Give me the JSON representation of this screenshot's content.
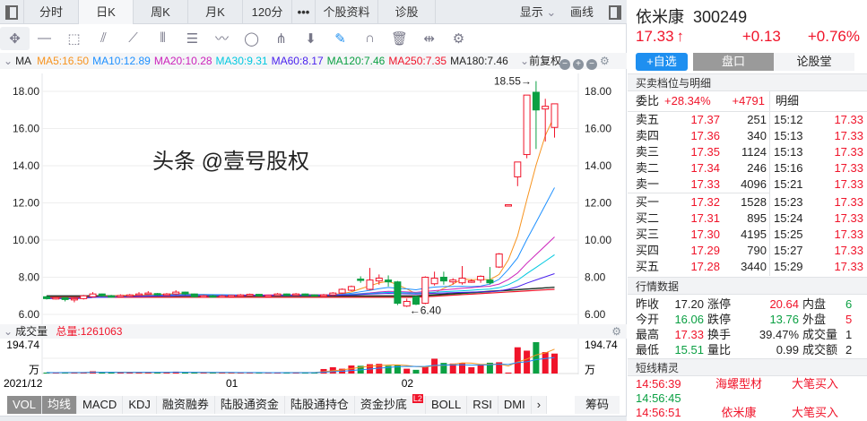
{
  "tabs": [
    "分时",
    "日K",
    "周K",
    "月K",
    "120分",
    "•••",
    "个股资料",
    "诊股"
  ],
  "tabs_right": {
    "display": "显示",
    "draw": "画线"
  },
  "tools": [
    "move-icon",
    "line-icon",
    "rect-icon",
    "fan-icon",
    "segment-icon",
    "parallel-lines-icon",
    "gann-icon",
    "wave-icon",
    "cycle-icon",
    "fork-icon",
    "arrow-down-icon",
    "eraser-icon",
    "magnet-icon",
    "trash-icon",
    "split-icon",
    "gear-icon"
  ],
  "ma_legend": {
    "label": "MA",
    "items": [
      {
        "text": "MA5:16.50",
        "color": "#f7931e"
      },
      {
        "text": "MA10:12.89",
        "color": "#1e90ff"
      },
      {
        "text": "MA20:10.28",
        "color": "#cc22bb"
      },
      {
        "text": "MA30:9.31",
        "color": "#00c8e0"
      },
      {
        "text": "MA60:8.17",
        "color": "#4a22ee"
      },
      {
        "text": "MA120:7.46",
        "color": "#0ba043"
      },
      {
        "text": "MA250:7.35",
        "color": "#f0142a"
      },
      {
        "text": "MA180:7.46",
        "color": "#222222"
      }
    ],
    "adjust": "前复权"
  },
  "chart_data": {
    "type": "candlestick",
    "y_ticks": [
      "18.00",
      "16.00",
      "14.00",
      "12.00",
      "10.00",
      "8.00",
      "6.00"
    ],
    "ylim": [
      6,
      18
    ],
    "x_labels": [
      {
        "text": "2021/12",
        "index": 0
      },
      {
        "text": "01",
        "index": 20
      },
      {
        "text": "02",
        "index": 39
      }
    ],
    "annotations": {
      "high": "18.55",
      "low": "6.40"
    },
    "candles": [
      [
        6.95,
        6.85,
        7.0,
        6.8
      ],
      [
        6.85,
        6.9,
        6.95,
        6.8
      ],
      [
        6.9,
        6.8,
        6.92,
        6.7
      ],
      [
        6.8,
        6.85,
        6.9,
        6.65
      ],
      [
        6.85,
        7.0,
        7.05,
        6.8
      ],
      [
        6.95,
        7.1,
        7.2,
        6.9
      ],
      [
        7.1,
        7.0,
        7.12,
        6.95
      ],
      [
        7.0,
        6.98,
        7.05,
        6.9
      ],
      [
        6.98,
        7.02,
        7.08,
        6.95
      ],
      [
        7.0,
        7.05,
        7.1,
        6.95
      ],
      [
        7.05,
        7.1,
        7.2,
        7.0
      ],
      [
        7.1,
        7.15,
        7.25,
        7.05
      ],
      [
        7.12,
        7.05,
        7.15,
        7.0
      ],
      [
        7.05,
        7.1,
        7.15,
        7.0
      ],
      [
        7.1,
        7.2,
        7.3,
        7.05
      ],
      [
        7.2,
        7.1,
        7.22,
        7.05
      ],
      [
        7.1,
        6.95,
        7.12,
        6.9
      ],
      [
        6.95,
        7.0,
        7.05,
        6.9
      ],
      [
        7.0,
        6.95,
        7.05,
        6.9
      ],
      [
        6.95,
        7.0,
        7.05,
        6.9
      ],
      [
        7.0,
        7.02,
        7.05,
        6.95
      ],
      [
        7.02,
        7.05,
        7.1,
        6.98
      ],
      [
        7.05,
        7.08,
        7.12,
        7.0
      ],
      [
        7.08,
        7.0,
        7.1,
        6.95
      ],
      [
        7.0,
        7.02,
        7.05,
        6.95
      ],
      [
        7.02,
        7.1,
        7.15,
        7.0
      ],
      [
        7.1,
        7.05,
        7.12,
        7.0
      ],
      [
        7.05,
        7.1,
        7.15,
        7.0
      ],
      [
        7.1,
        7.05,
        7.12,
        7.0
      ],
      [
        7.05,
        7.0,
        7.08,
        6.95
      ],
      [
        7.0,
        7.05,
        7.1,
        6.95
      ],
      [
        7.05,
        7.15,
        7.2,
        7.0
      ],
      [
        7.15,
        7.35,
        7.4,
        7.1
      ],
      [
        7.3,
        7.5,
        7.55,
        7.25
      ],
      [
        7.9,
        7.85,
        8.05,
        7.7
      ],
      [
        7.35,
        7.85,
        8.5,
        7.3
      ],
      [
        7.8,
        7.95,
        8.15,
        7.6
      ],
      [
        7.85,
        7.75,
        8.1,
        7.5
      ],
      [
        7.75,
        6.6,
        7.8,
        6.5
      ],
      [
        6.45,
        6.7,
        6.85,
        6.4
      ],
      [
        6.95,
        6.55,
        7.0,
        6.5
      ],
      [
        6.6,
        8.0,
        8.05,
        6.55
      ],
      [
        7.65,
        7.95,
        8.3,
        7.55
      ],
      [
        8.0,
        7.8,
        8.3,
        7.6
      ],
      [
        7.75,
        7.85,
        7.95,
        7.6
      ],
      [
        7.7,
        7.95,
        8.6,
        7.6
      ],
      [
        7.8,
        7.8,
        7.9,
        7.7
      ],
      [
        7.85,
        8.05,
        8.1,
        7.7
      ],
      [
        7.85,
        7.7,
        8.55,
        7.6
      ],
      [
        8.55,
        9.25,
        9.3,
        8.5
      ],
      [
        11.85,
        11.9,
        11.9,
        11.85
      ],
      [
        13.4,
        14.2,
        14.2,
        12.9
      ],
      [
        14.6,
        17.8,
        17.8,
        14.4
      ],
      [
        17.95,
        17.0,
        18.55,
        14.9
      ],
      [
        17.05,
        17.2,
        17.6,
        15.3
      ],
      [
        16.06,
        17.33,
        17.33,
        15.51
      ]
    ],
    "volume": {
      "label": "成交量",
      "total": "总量:1261063",
      "max_label": "194.74",
      "unit": "万",
      "ylim": [
        0,
        194.74
      ],
      "values": [
        6,
        5,
        7,
        6,
        8,
        14,
        7,
        6,
        6,
        7,
        8,
        9,
        7,
        6,
        12,
        7,
        6,
        5,
        6,
        7,
        5,
        4,
        6,
        5,
        6,
        6,
        7,
        6,
        6,
        7,
        28,
        39,
        30,
        50,
        48,
        58,
        60,
        48,
        53,
        30,
        23,
        44,
        92,
        66,
        62,
        65,
        39,
        53,
        67,
        70,
        6,
        163,
        142,
        194.74,
        133,
        124
      ]
    }
  },
  "bottom_tabs": [
    "VOL",
    "均线",
    "MACD",
    "KDJ",
    "融资融券",
    "陆股通资金",
    "陆股通持仓",
    "资金抄底",
    "BOLL",
    "RSI",
    "DMI"
  ],
  "bottom_badge": "L2",
  "chips": "筹码",
  "stock": {
    "name": "依米康",
    "code": "300249",
    "price": "17.33",
    "arrow": "↑",
    "change": "+0.13",
    "pct": "+0.76%"
  },
  "stock_buttons": {
    "watch": "+自选",
    "panel": "盘口",
    "forum": "论股堂"
  },
  "orderbook": {
    "title": "买卖档位与明细",
    "ratio_label": "委比",
    "ratio": "+28.34%",
    "diff": "+4791",
    "detail_label": "明细",
    "sell": [
      {
        "l": "卖五",
        "p": "17.37",
        "v": "251"
      },
      {
        "l": "卖四",
        "p": "17.36",
        "v": "340"
      },
      {
        "l": "卖三",
        "p": "17.35",
        "v": "1124"
      },
      {
        "l": "卖二",
        "p": "17.34",
        "v": "246"
      },
      {
        "l": "卖一",
        "p": "17.33",
        "v": "4096"
      }
    ],
    "buy": [
      {
        "l": "买一",
        "p": "17.32",
        "v": "1528"
      },
      {
        "l": "买二",
        "p": "17.31",
        "v": "895"
      },
      {
        "l": "买三",
        "p": "17.30",
        "v": "4195"
      },
      {
        "l": "买四",
        "p": "17.29",
        "v": "790"
      },
      {
        "l": "买五",
        "p": "17.28",
        "v": "3440"
      }
    ],
    "ticks": [
      {
        "t": "15:12",
        "p": "17.33"
      },
      {
        "t": "15:13",
        "p": "17.33"
      },
      {
        "t": "15:13",
        "p": "17.33"
      },
      {
        "t": "15:16",
        "p": "17.33"
      },
      {
        "t": "15:21",
        "p": "17.33"
      },
      {
        "t": "15:23",
        "p": "17.33"
      },
      {
        "t": "15:24",
        "p": "17.33"
      },
      {
        "t": "15:25",
        "p": "17.33"
      },
      {
        "t": "15:27",
        "p": "17.33"
      },
      {
        "t": "15:29",
        "p": "17.33"
      }
    ]
  },
  "quote": {
    "title": "行情数据",
    "rows": [
      [
        {
          "l": "昨收",
          "v": "17.20",
          "c": ""
        },
        {
          "l": "涨停",
          "v": "20.64",
          "c": "red"
        },
        {
          "l": "内盘",
          "v": "6",
          "c": "green"
        }
      ],
      [
        {
          "l": "今开",
          "v": "16.06",
          "c": "green"
        },
        {
          "l": "跌停",
          "v": "13.76",
          "c": "green"
        },
        {
          "l": "外盘",
          "v": "5",
          "c": "red"
        }
      ],
      [
        {
          "l": "最高",
          "v": "17.33",
          "c": "red"
        },
        {
          "l": "换手",
          "v": "39.47%",
          "c": ""
        },
        {
          "l": "成交量",
          "v": "1",
          "c": ""
        }
      ],
      [
        {
          "l": "最低",
          "v": "15.51",
          "c": "green"
        },
        {
          "l": "量比",
          "v": "0.99",
          "c": ""
        },
        {
          "l": "成交额",
          "v": "2",
          "c": ""
        }
      ]
    ]
  },
  "sprite": {
    "title": "短线精灵",
    "rows": [
      {
        "t": "14:56:39",
        "n": "海螺型材",
        "a": "大笔买入",
        "c": "red"
      },
      {
        "t": "14:56:45",
        "n": "",
        "a": "",
        "c": "green"
      },
      {
        "t": "14:56:51",
        "n": "依米康",
        "a": "大笔买入",
        "c": "red"
      }
    ]
  },
  "watermark": "头条 @壹号股权"
}
